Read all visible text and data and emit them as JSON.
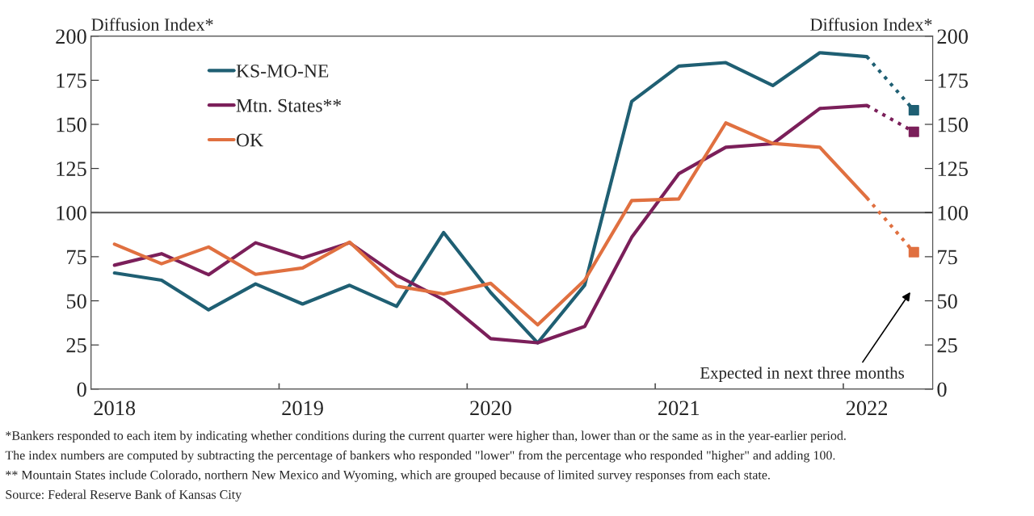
{
  "chart_data": {
    "type": "line",
    "ylabel": "Diffusion Index*",
    "y2label": "Diffusion Index*",
    "categories": [
      "2018",
      null,
      null,
      null,
      "2019",
      null,
      null,
      null,
      "2020",
      null,
      null,
      null,
      "2021",
      null,
      null,
      null,
      "2022",
      null
    ],
    "ylim": [
      0,
      200
    ],
    "yticks": [
      0,
      25,
      50,
      75,
      100,
      125,
      150,
      175,
      200
    ],
    "y2lim": [
      0,
      200
    ],
    "y2ticks": [
      0,
      25,
      50,
      75,
      100,
      125,
      150,
      175,
      200
    ],
    "series": [
      {
        "name": "KS-MO-NE",
        "color": "#1f5f73",
        "values": [
          65.8,
          61.7,
          44.9,
          59.6,
          48.2,
          58.8,
          46.9,
          88.7,
          54.7,
          26.2,
          58.9,
          163,
          183,
          185,
          172,
          190.6,
          188.4,
          null
        ]
      },
      {
        "name": "Mtn. States**",
        "color": "#7b1f5a",
        "values": [
          70.2,
          76.7,
          64.8,
          82.9,
          74.3,
          82.9,
          64.5,
          50.6,
          28.6,
          26.2,
          35.5,
          86,
          122,
          137,
          139,
          159,
          160.7,
          null
        ]
      },
      {
        "name": "OK",
        "color": "#e07040",
        "values": [
          82.1,
          71,
          80.5,
          65,
          68.6,
          83.3,
          58.3,
          53.9,
          59.9,
          36.4,
          61.7,
          106.8,
          107.7,
          150.8,
          139.2,
          137,
          108.4,
          null
        ]
      },
      {
        "color": "#1f5f73",
        "values": [
          null,
          null,
          null,
          null,
          null,
          null,
          null,
          null,
          null,
          null,
          null,
          null,
          null,
          null,
          null,
          null,
          188.4,
          158
        ],
        "line_style": "dotted"
      },
      {
        "color": "#7b1f5a",
        "values": [
          null,
          null,
          null,
          null,
          null,
          null,
          null,
          null,
          null,
          null,
          null,
          null,
          null,
          null,
          null,
          null,
          160.7,
          145.8
        ],
        "line_style": "dotted"
      },
      {
        "color": "#e07040",
        "values": [
          null,
          null,
          null,
          null,
          null,
          null,
          null,
          null,
          null,
          null,
          null,
          null,
          null,
          null,
          null,
          null,
          108.4,
          77.6
        ],
        "line_style": "dotted"
      },
      {
        "type": "scatter",
        "color": "#1f5f73",
        "values": [
          null,
          null,
          null,
          null,
          null,
          null,
          null,
          null,
          null,
          null,
          null,
          null,
          null,
          null,
          null,
          null,
          null,
          158
        ],
        "marker": "square"
      },
      {
        "type": "scatter",
        "color": "#7b1f5a",
        "values": [
          null,
          null,
          null,
          null,
          null,
          null,
          null,
          null,
          null,
          null,
          null,
          null,
          null,
          null,
          null,
          null,
          null,
          145.8
        ],
        "marker": "square"
      },
      {
        "type": "scatter",
        "color": "#e07040",
        "values": [
          null,
          null,
          null,
          null,
          null,
          null,
          null,
          null,
          null,
          null,
          null,
          null,
          null,
          null,
          null,
          null,
          null,
          77.6
        ],
        "marker": "square"
      }
    ],
    "ref_lines": [
      {
        "axis": "y",
        "value": 100,
        "color": "#555555"
      }
    ],
    "legend": "top left",
    "annotations": [
      "Expected in next three months",
      "*Bankers responded to each item by indicating whether conditions during the current quarter were higher than, lower than or the same as in the year-earlier period.",
      "The index numbers are computed by subtracting the percentage of bankers who responded \"lower\" from the percentage who responded \"higher\" and adding 100.",
      "** Mountain States include Colorado, northern New Mexico and Wyoming, which are grouped because of limited survey responses from each state.",
      "Source: Federal Reserve Bank of Kansas City"
    ]
  }
}
